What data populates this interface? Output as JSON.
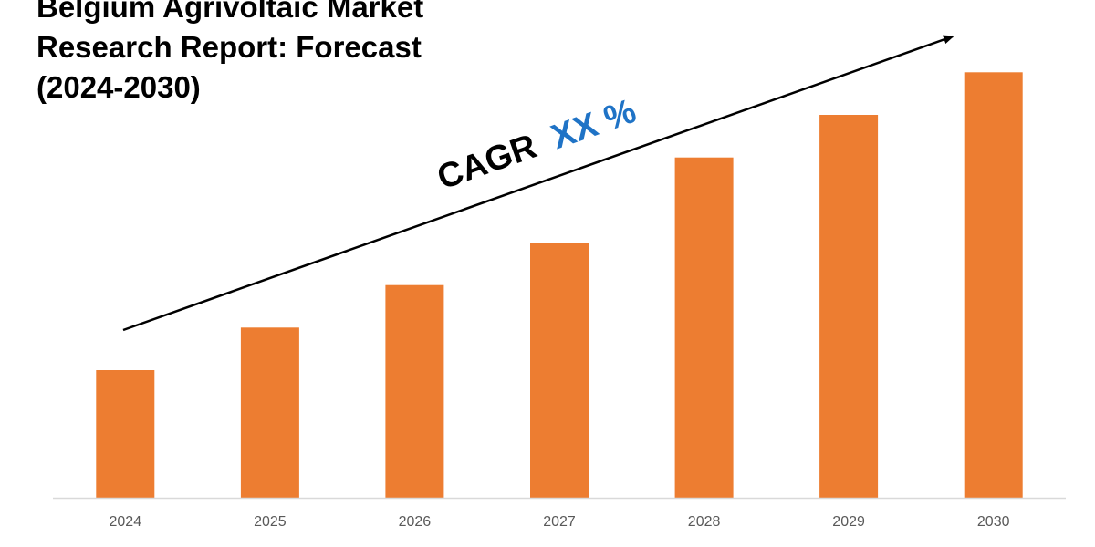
{
  "chart_data": {
    "type": "bar",
    "title_lines": [
      "Belgium Agrivoltaic Market",
      "Research Report: Forecast",
      "(2024-2030)"
    ],
    "categories": [
      "2024",
      "2025",
      "2026",
      "2027",
      "2028",
      "2029",
      "2030"
    ],
    "values": [
      30,
      40,
      50,
      60,
      80,
      90,
      100
    ],
    "ylim": [
      0,
      105
    ],
    "grid": false,
    "legend": "none",
    "annotation": {
      "prefix": "CAGR",
      "value": "XX %",
      "prefix_color": "#000000",
      "value_color": "#1F73C6"
    },
    "bar_color": "#ED7D31",
    "axis_color": "#D9D9D9"
  }
}
